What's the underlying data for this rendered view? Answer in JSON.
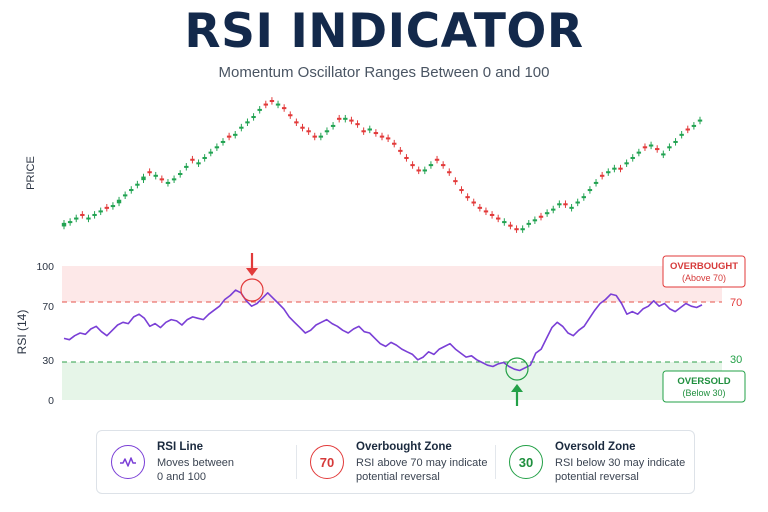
{
  "title": "RSI INDICATOR",
  "subtitle": "Momentum Oscillator Ranges Between 0 and 100",
  "colors": {
    "bullish": "#22a352",
    "bearish": "#e23a3a",
    "rsi_line": "#7a3fd6",
    "overbought": "#e23a3a",
    "oversold": "#23a047",
    "title": "#13294b"
  },
  "chart_data": [
    {
      "type": "candlestick",
      "ylabel": "PRICE",
      "x": [
        1,
        2,
        3,
        4,
        5,
        6,
        7,
        8,
        9,
        10,
        11,
        12,
        13,
        14,
        15,
        16,
        17,
        18,
        19,
        20,
        21,
        22,
        23,
        24,
        25,
        26,
        27,
        28,
        29,
        30,
        31,
        32,
        33,
        34,
        35,
        36,
        37,
        38,
        39,
        40,
        41,
        42,
        43,
        44,
        45,
        46,
        47,
        48,
        49,
        50,
        51,
        52,
        53,
        54,
        55,
        56,
        57,
        58,
        59,
        60,
        61,
        62,
        63,
        64,
        65,
        66,
        67,
        68,
        69,
        70,
        71,
        72,
        73,
        74,
        75,
        76,
        77,
        78,
        79,
        80,
        81,
        82,
        83,
        84,
        85,
        86,
        87,
        88,
        89,
        90,
        91,
        92,
        93,
        94,
        95,
        96,
        97,
        98,
        99,
        100,
        101,
        102,
        103,
        104,
        105
      ],
      "close": [
        22,
        23,
        25,
        26,
        25,
        27,
        29,
        30,
        32,
        35,
        38,
        41,
        44,
        48,
        50,
        49,
        46,
        45,
        47,
        50,
        54,
        57,
        56,
        59,
        62,
        65,
        68,
        70,
        72,
        76,
        79,
        82,
        86,
        88,
        90,
        89,
        86,
        82,
        78,
        75,
        73,
        70,
        71,
        74,
        77,
        80,
        81,
        79,
        77,
        73,
        75,
        72,
        70,
        69,
        66,
        62,
        58,
        54,
        51,
        52,
        55,
        57,
        54,
        50,
        45,
        40,
        36,
        33,
        30,
        28,
        26,
        24,
        23,
        20,
        18,
        19,
        22,
        24,
        25,
        28,
        30,
        33,
        32,
        31,
        34,
        37,
        41,
        45,
        48,
        51,
        53,
        52,
        56,
        59,
        62,
        64,
        66,
        63,
        61,
        65,
        68,
        72,
        74,
        77,
        80
      ],
      "open": [
        20,
        22,
        24,
        27,
        24,
        26,
        28,
        31,
        31,
        33,
        37,
        40,
        43,
        46,
        51,
        48,
        47,
        44,
        46,
        49,
        53,
        58,
        55,
        58,
        61,
        64,
        67,
        71,
        71,
        75,
        78,
        81,
        85,
        89,
        91,
        88,
        87,
        83,
        79,
        76,
        74,
        71,
        70,
        73,
        76,
        81,
        80,
        80,
        78,
        74,
        74,
        73,
        71,
        70,
        67,
        63,
        59,
        55,
        52,
        51,
        54,
        58,
        55,
        51,
        46,
        41,
        37,
        34,
        31,
        29,
        27,
        25,
        22,
        21,
        19,
        18,
        21,
        23,
        26,
        27,
        29,
        32,
        33,
        30,
        33,
        36,
        40,
        44,
        49,
        50,
        52,
        53,
        55,
        58,
        61,
        65,
        65,
        64,
        60,
        64,
        67,
        71,
        75,
        76,
        79
      ]
    },
    {
      "type": "line",
      "ylabel": "RSI (14)",
      "ylim": [
        0,
        100
      ],
      "yticks": [
        "100",
        "70",
        "30",
        "0"
      ],
      "overbought_level": "70",
      "oversold_level": "30",
      "series": [
        {
          "name": "RSI Line",
          "values": [
            46,
            45,
            48,
            50,
            49,
            53,
            55,
            51,
            48,
            52,
            56,
            58,
            57,
            62,
            64,
            61,
            55,
            57,
            54,
            58,
            60,
            59,
            56,
            60,
            62,
            61,
            60,
            64,
            67,
            70,
            75,
            78,
            82,
            80,
            74,
            70,
            72,
            76,
            80,
            76,
            72,
            68,
            62,
            58,
            54,
            50,
            52,
            56,
            58,
            60,
            57,
            55,
            52,
            50,
            53,
            55,
            51,
            50,
            46,
            42,
            40,
            43,
            41,
            38,
            36,
            34,
            30,
            32,
            36,
            34,
            38,
            40,
            42,
            38,
            35,
            32,
            33,
            30,
            28,
            26,
            25,
            27,
            28,
            25,
            23,
            22,
            24,
            26,
            35,
            38,
            46,
            54,
            58,
            55,
            50,
            48,
            52,
            55,
            61,
            67,
            72,
            75,
            79,
            78,
            72,
            64,
            66,
            64,
            68,
            70,
            74,
            70,
            72,
            68,
            66,
            69,
            72,
            70,
            69,
            71
          ]
        }
      ],
      "annotations": {
        "overbought_box": [
          "OVERBOUGHT",
          "(Above 70)"
        ],
        "oversold_box": [
          "OVERSOLD",
          "(Below 30)"
        ]
      }
    }
  ],
  "legend": [
    {
      "icon": "rsi-line-icon",
      "badge": "",
      "heading": "RSI Line",
      "lines": [
        "Moves between",
        "0 and 100"
      ]
    },
    {
      "icon": "overbought-badge",
      "badge": "70",
      "heading": "Overbought Zone",
      "lines": [
        "RSI above 70 may indicate",
        "potential reversal"
      ]
    },
    {
      "icon": "oversold-badge",
      "badge": "30",
      "heading": "Oversold Zone",
      "lines": [
        "RSI below 30 may indicate",
        "potential reversal"
      ]
    }
  ]
}
